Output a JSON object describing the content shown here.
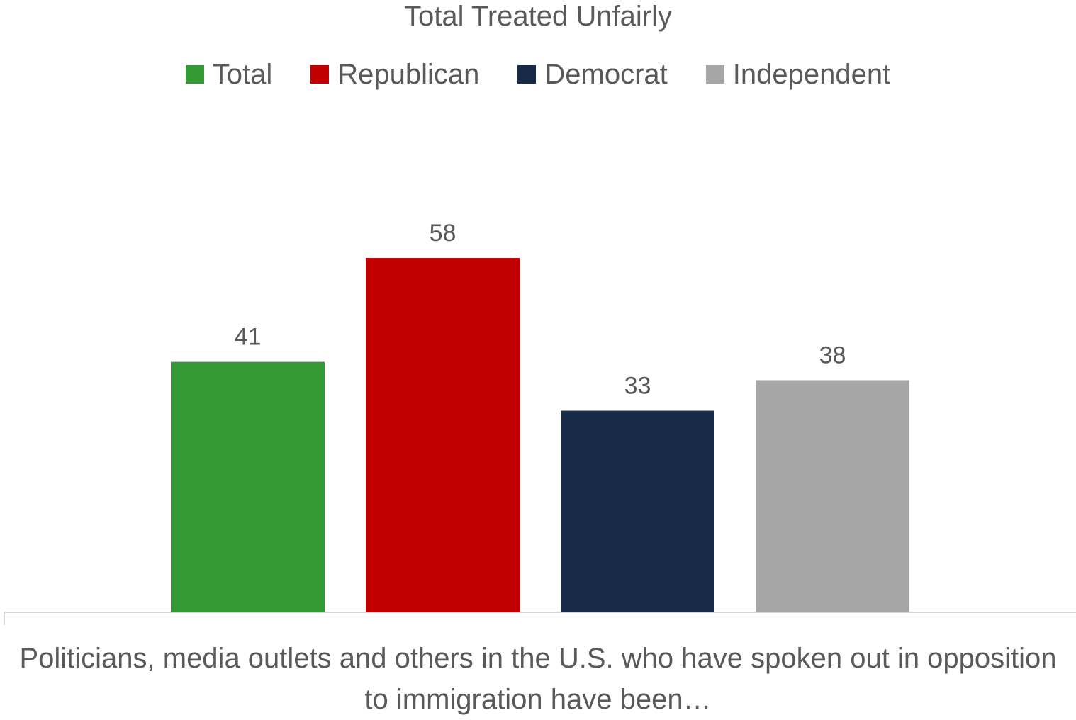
{
  "chart_data": {
    "type": "bar",
    "title": "Total Treated Unfairly",
    "categories": [
      "Politicians, media outlets and others in the U.S. who have spoken out in opposition to immigration have been…"
    ],
    "series": [
      {
        "name": "Total",
        "values": [
          41
        ],
        "color": "#339933"
      },
      {
        "name": "Republican",
        "values": [
          58
        ],
        "color": "#C00000"
      },
      {
        "name": "Democrat",
        "values": [
          33
        ],
        "color": "#172A48"
      },
      {
        "name": "Independent",
        "values": [
          38
        ],
        "color": "#A6A6A6"
      }
    ],
    "ylim": [
      0,
      100
    ],
    "grid": false,
    "legend_position": "top",
    "data_labels": true
  }
}
